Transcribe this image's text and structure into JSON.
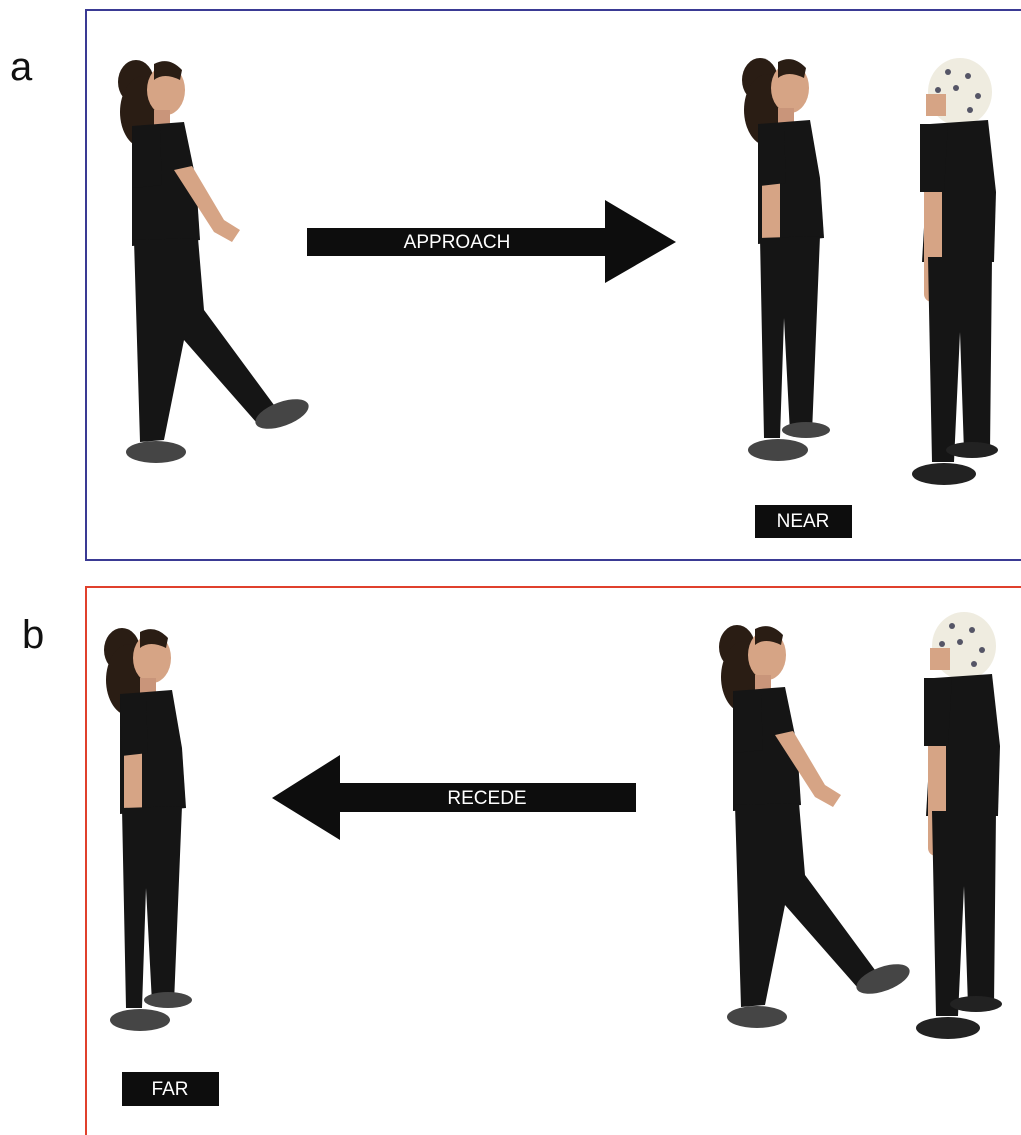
{
  "panels": [
    {
      "label": "a",
      "arrow": "APPROACH",
      "position": "NEAR"
    },
    {
      "label": "b",
      "arrow": "RECEDE",
      "position": "FAR"
    }
  ]
}
